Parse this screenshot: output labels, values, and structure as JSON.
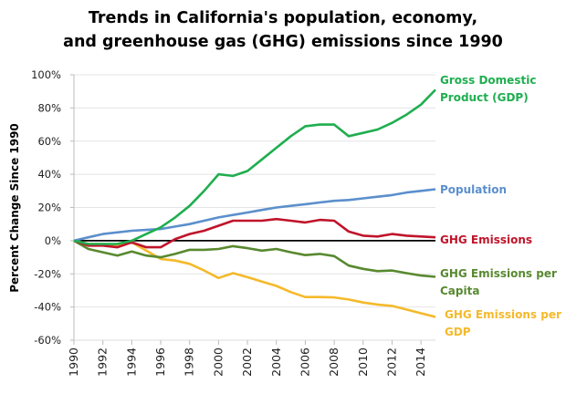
{
  "chart_data": {
    "type": "line",
    "title": [
      "Trends in California's population, economy,",
      "and greenhouse gas (GHG) emissions since 1990"
    ],
    "xlabel": "",
    "ylabel": "Percent Change Since 1990",
    "x": [
      1990,
      1991,
      1992,
      1993,
      1994,
      1995,
      1996,
      1997,
      1998,
      1999,
      2000,
      2001,
      2002,
      2003,
      2004,
      2005,
      2006,
      2007,
      2008,
      2009,
      2010,
      2011,
      2012,
      2013,
      2014,
      2015
    ],
    "xticks": [
      "1990",
      "1992",
      "1994",
      "1996",
      "1998",
      "2000",
      "2002",
      "2004",
      "2006",
      "2008",
      "2010",
      "2012",
      "2014"
    ],
    "ylim": [
      -60,
      100
    ],
    "yticks": [
      "100%",
      "80%",
      "60%",
      "40%",
      "20%",
      "0%",
      "-20%",
      "-40%",
      "-60%"
    ],
    "grid": "horizontal",
    "legend": "right (inline labels at line ends)",
    "series": [
      {
        "name": "Gross Domestic Product (GDP)",
        "label_lines": [
          "Gross Domestic",
          "Product (GDP)"
        ],
        "color": "#1fae4f",
        "values": [
          0,
          -2,
          -2,
          -2,
          0,
          4,
          8,
          14,
          21,
          30,
          40,
          39,
          42,
          49,
          56,
          63,
          69,
          70,
          70,
          63,
          65,
          67,
          71,
          76,
          82,
          91
        ]
      },
      {
        "name": "Population",
        "label_lines": [
          "Population"
        ],
        "color": "#5b8fcc",
        "values": [
          0,
          2,
          4,
          5,
          6,
          6.5,
          7,
          8.5,
          10,
          12,
          14,
          15.5,
          17,
          18.5,
          20,
          21,
          22,
          23,
          24,
          24.5,
          25.5,
          26.5,
          27.5,
          29,
          30,
          31
        ]
      },
      {
        "name": "GHG Emissions",
        "label_lines": [
          "GHG Emissions"
        ],
        "color": "#c0142b",
        "values": [
          0,
          -3,
          -3,
          -4,
          -1,
          -4,
          -4,
          1,
          4,
          6,
          9,
          12,
          12,
          12,
          13,
          12,
          11,
          12.5,
          12,
          5.5,
          3,
          2.5,
          4,
          3,
          2.5,
          2
        ]
      },
      {
        "name": "GHG Emissions per Capita",
        "label_lines": [
          "GHG Emissions per",
          "Capita"
        ],
        "color": "#58892f",
        "values": [
          0,
          -5,
          -7,
          -9,
          -6.5,
          -9,
          -10,
          -8,
          -5.5,
          -5.5,
          -5,
          -3.3,
          -4.5,
          -6,
          -5,
          -7,
          -8.7,
          -8,
          -9.3,
          -15,
          -17,
          -18.4,
          -18,
          -19.6,
          -21,
          -21.8
        ]
      },
      {
        "name": "GHG Emissions per GDP",
        "label_lines": [
          "GHG Emissions per",
          "GDP"
        ],
        "color": "#f5b92a",
        "values": [
          0,
          -2,
          -2,
          -3,
          -1,
          -6,
          -11,
          -12,
          -14,
          -18,
          -22.5,
          -19.6,
          -22,
          -24.7,
          -27.3,
          -31,
          -34,
          -34,
          -34.2,
          -35.5,
          -37.3,
          -38.5,
          -39.3,
          -41.5,
          -43.8,
          -46
        ]
      }
    ]
  }
}
